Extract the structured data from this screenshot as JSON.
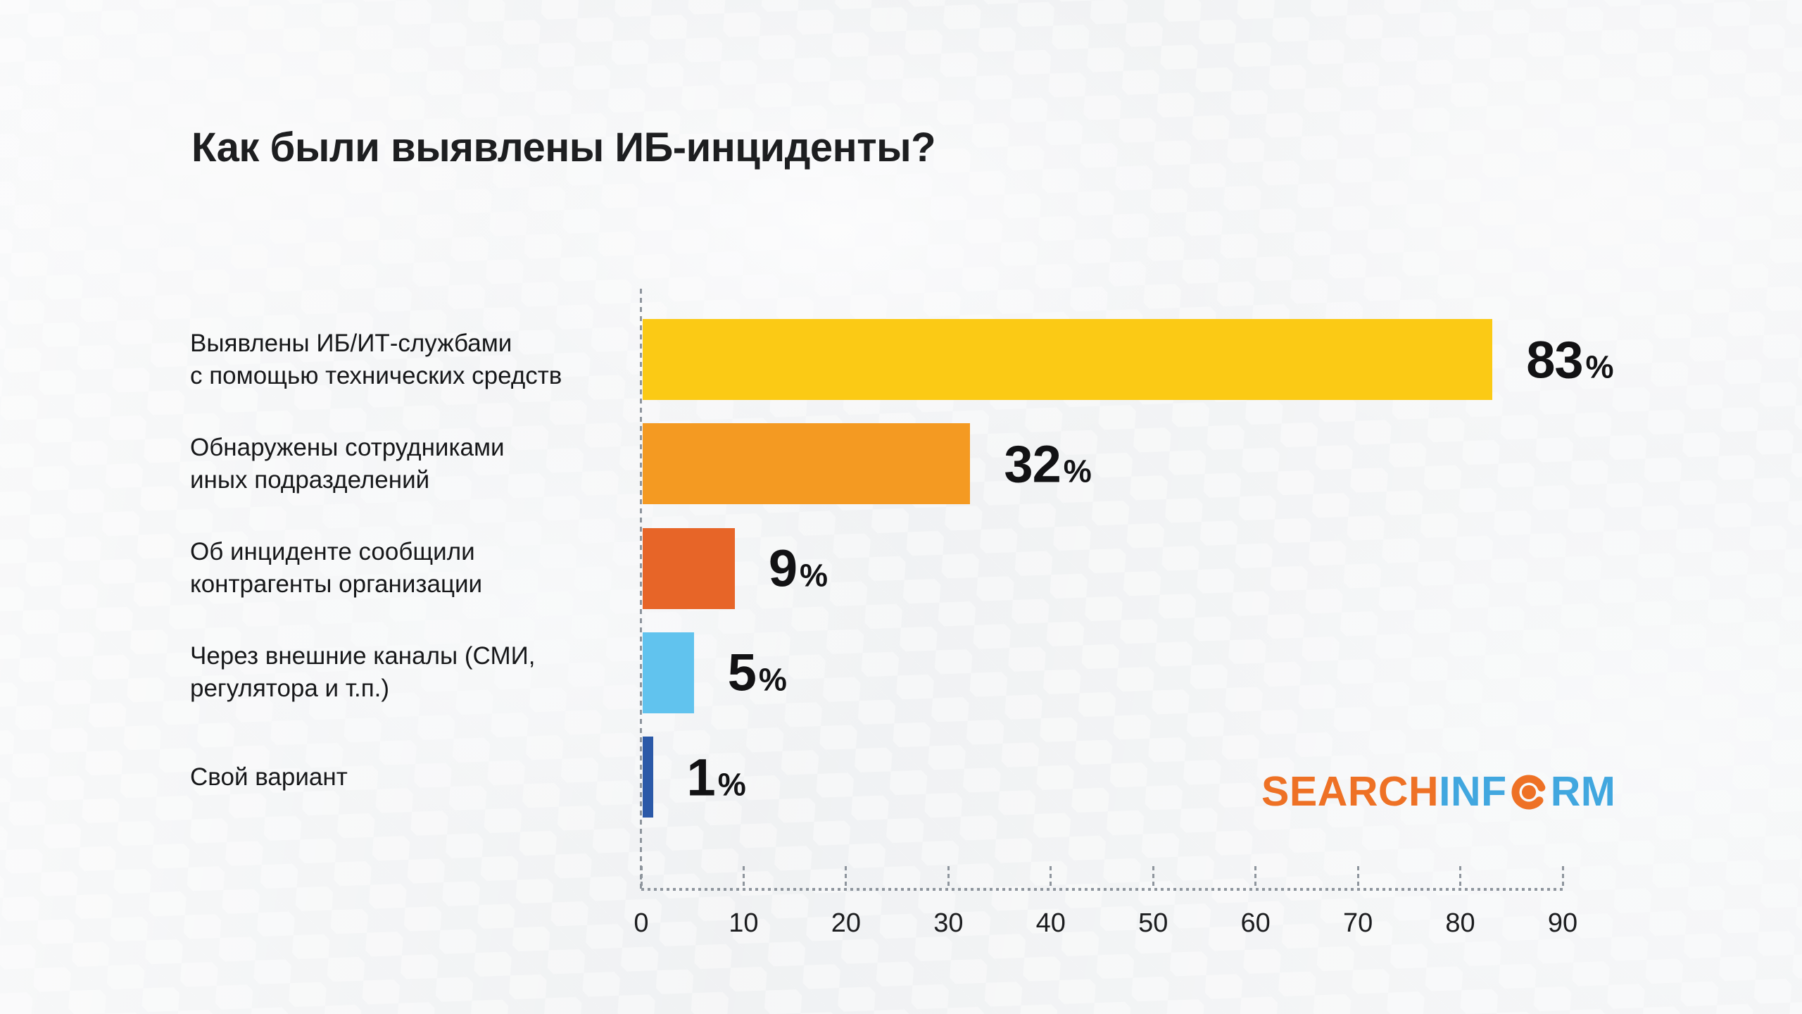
{
  "title": "Как были выявлены ИБ-инциденты?",
  "logo": {
    "search": "SEARCH",
    "inf": "INF",
    "rm": "RM",
    "orange": "#EE7125",
    "blue": "#41A7DF"
  },
  "chart_data": {
    "type": "bar",
    "orientation": "horizontal",
    "title": "Как были выявлены ИБ-инциденты?",
    "categories": [
      "Выявлены ИБ/ИТ-службами\nс помощью технических средств",
      "Обнаружены сотрудниками\nиных подразделений",
      "Об инциденте сообщили\nконтрагенты организации",
      "Через внешние каналы (СМИ,\nрегулятора и т.п.)",
      "Свой вариант"
    ],
    "values": [
      83,
      32,
      9,
      5,
      1
    ],
    "unit": "%",
    "bar_colors": [
      "#FBCA15",
      "#F49A22",
      "#E76528",
      "#61C3EE",
      "#2B59A8"
    ],
    "xlim": [
      0,
      90
    ],
    "xticks": [
      0,
      10,
      20,
      30,
      40,
      50,
      60,
      70,
      80,
      90
    ],
    "grid": false,
    "legend": false,
    "axis_color": "#8E959D",
    "value_label_position": "right-of-bar"
  }
}
